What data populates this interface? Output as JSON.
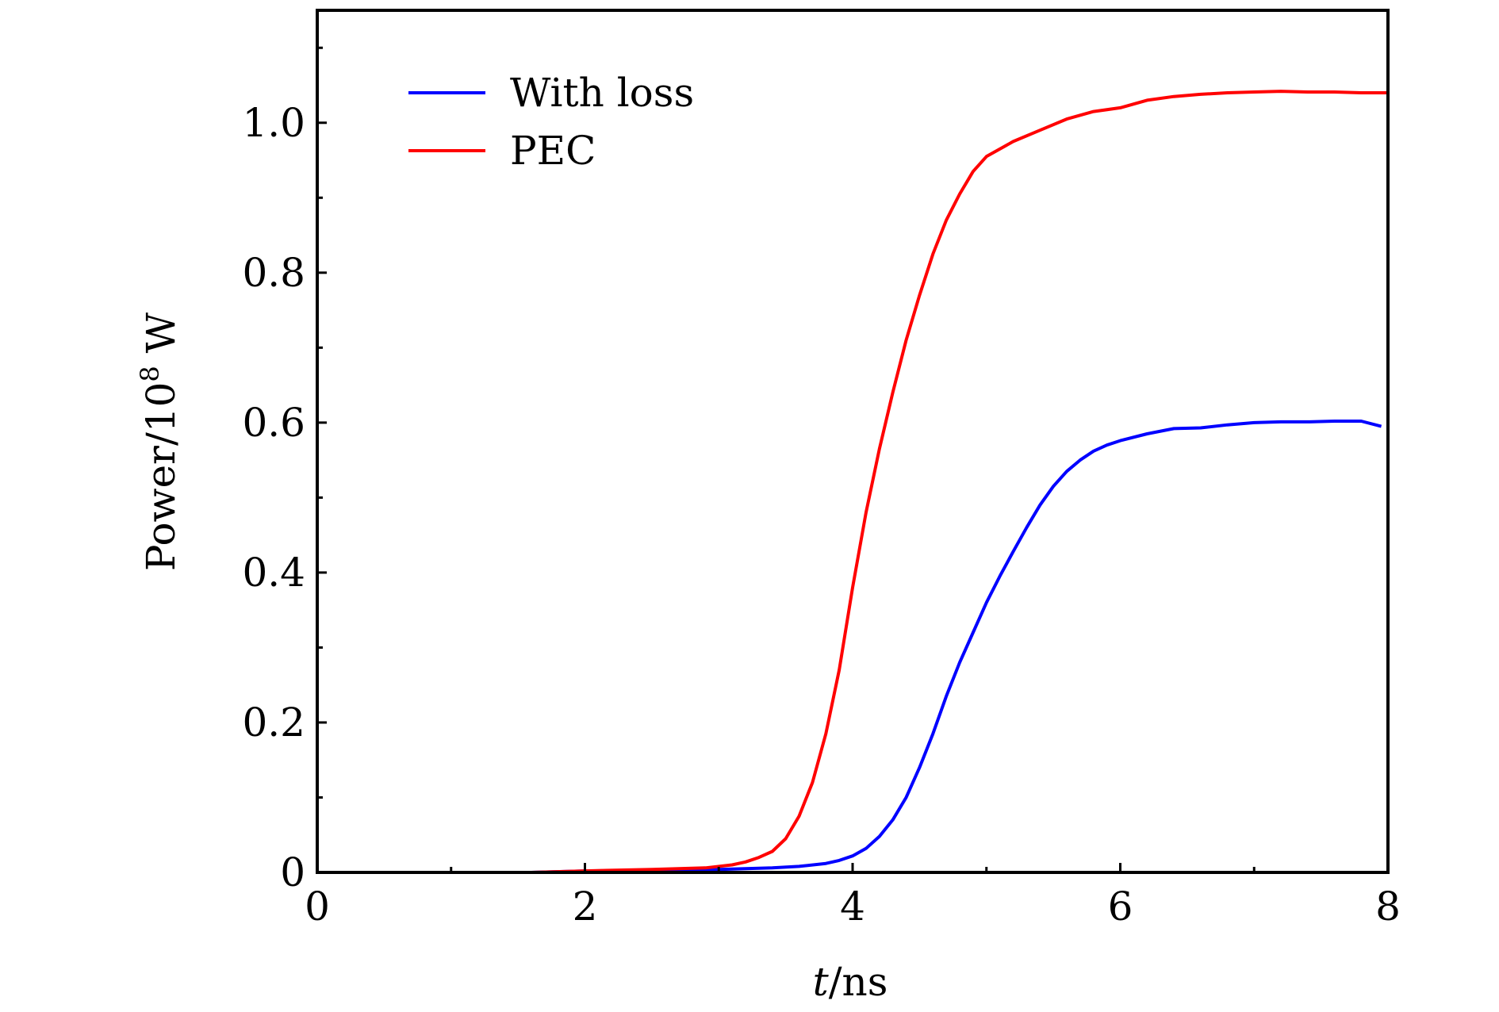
{
  "chart_data": {
    "type": "line",
    "xlabel": "t/ns",
    "ylabel": "Power/10",
    "ylabel_sup": "8",
    "ylabel_unit": " W",
    "xlim": [
      0,
      8
    ],
    "ylim": [
      0,
      1.15
    ],
    "xticks": [
      0,
      2,
      4,
      6,
      8
    ],
    "xtick_labels": [
      "0",
      "2",
      "4",
      "6",
      "8"
    ],
    "xminor": [
      1,
      3,
      5,
      7
    ],
    "yticks": [
      0,
      0.2,
      0.4,
      0.6,
      0.8,
      1.0
    ],
    "ytick_labels": [
      "0",
      "0.2",
      "0.4",
      "0.6",
      "0.8",
      "1.0"
    ],
    "yminor": [
      0.1,
      0.3,
      0.5,
      0.7,
      0.9,
      1.1
    ],
    "grid": false,
    "legend_position": "top-left",
    "series": [
      {
        "name": "With loss",
        "color": "#0000ff",
        "x": [
          1.6,
          2.0,
          2.5,
          3.0,
          3.4,
          3.6,
          3.8,
          3.9,
          4.0,
          4.1,
          4.2,
          4.3,
          4.4,
          4.5,
          4.6,
          4.7,
          4.8,
          4.9,
          5.0,
          5.1,
          5.2,
          5.3,
          5.4,
          5.5,
          5.6,
          5.7,
          5.8,
          5.9,
          6.0,
          6.2,
          6.4,
          6.6,
          6.8,
          7.0,
          7.2,
          7.4,
          7.6,
          7.8,
          7.95
        ],
        "y": [
          0.0,
          0.002,
          0.003,
          0.004,
          0.006,
          0.008,
          0.012,
          0.016,
          0.022,
          0.032,
          0.048,
          0.07,
          0.1,
          0.14,
          0.185,
          0.235,
          0.28,
          0.32,
          0.36,
          0.395,
          0.428,
          0.46,
          0.49,
          0.515,
          0.535,
          0.55,
          0.562,
          0.57,
          0.576,
          0.585,
          0.592,
          0.593,
          0.597,
          0.6,
          0.601,
          0.601,
          0.602,
          0.602,
          0.595
        ]
      },
      {
        "name": "PEC",
        "color": "#ff0000",
        "x": [
          1.6,
          2.0,
          2.5,
          2.9,
          3.1,
          3.2,
          3.3,
          3.4,
          3.5,
          3.6,
          3.7,
          3.8,
          3.9,
          4.0,
          4.1,
          4.2,
          4.3,
          4.4,
          4.5,
          4.6,
          4.7,
          4.8,
          4.9,
          5.0,
          5.1,
          5.2,
          5.4,
          5.6,
          5.8,
          6.0,
          6.2,
          6.4,
          6.6,
          6.8,
          7.0,
          7.2,
          7.4,
          7.6,
          7.8,
          8.0
        ],
        "y": [
          0.0,
          0.002,
          0.004,
          0.006,
          0.01,
          0.014,
          0.02,
          0.028,
          0.045,
          0.075,
          0.12,
          0.185,
          0.27,
          0.38,
          0.48,
          0.565,
          0.64,
          0.71,
          0.77,
          0.825,
          0.87,
          0.905,
          0.935,
          0.955,
          0.965,
          0.975,
          0.99,
          1.005,
          1.015,
          1.02,
          1.03,
          1.035,
          1.038,
          1.04,
          1.041,
          1.042,
          1.041,
          1.041,
          1.04,
          1.04
        ]
      }
    ]
  }
}
